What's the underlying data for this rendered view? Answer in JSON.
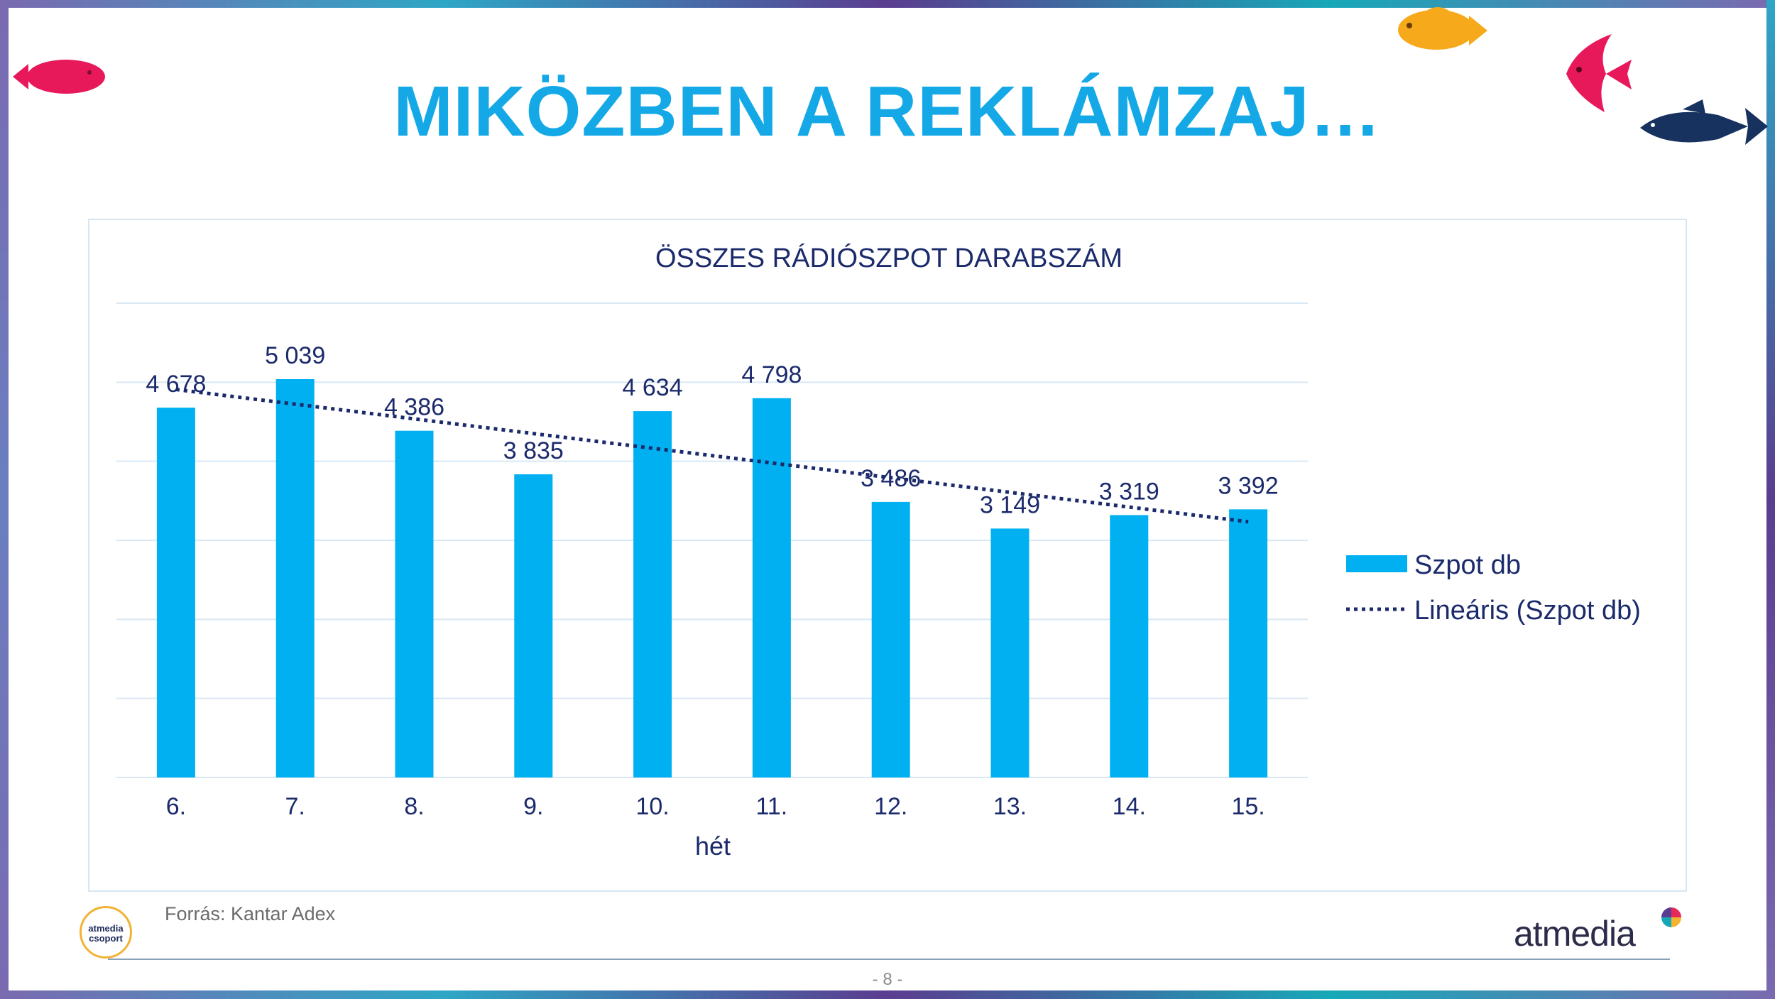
{
  "slide": {
    "title": "MIKÖZBEN A REKLÁMZAJ…",
    "source": "Forrás: Kantar Adex",
    "page_number": "- 8 -",
    "logo_left_text_1": "atmedia",
    "logo_left_text_2": "csoport",
    "logo_right_text": "atmedia"
  },
  "colors": {
    "title": "#14a9e6",
    "bar": "#00b0f0",
    "trend": "#1b2a6b",
    "label": "#1b2a6b",
    "gridline": "#d9e8f5"
  },
  "chart_data": {
    "type": "bar",
    "title": "ÖSSZES RÁDIÓSZPOT DARABSZÁM",
    "xlabel": "hét",
    "ylabel": "",
    "categories": [
      "6.",
      "7.",
      "8.",
      "9.",
      "10.",
      "11.",
      "12.",
      "13.",
      "14.",
      "15."
    ],
    "series": [
      {
        "name": "Szpot db",
        "values": [
          4678,
          5039,
          4386,
          3835,
          4634,
          4798,
          3486,
          3149,
          3319,
          3392
        ],
        "labels": [
          "4 678",
          "5 039",
          "4 386",
          "3 835",
          "4 634",
          "4 798",
          "3 486",
          "3 149",
          "3 319",
          "3 392"
        ]
      }
    ],
    "trendline": {
      "name": "Lineáris (Szpot db)",
      "type": "linear",
      "style": "dotted"
    },
    "ylim": [
      0,
      6000
    ],
    "y_grid_step": 1000,
    "y_axis_labels_shown": false,
    "grid": true,
    "legend_position": "right"
  },
  "icons": [
    "fish-icon-red",
    "fish-icon-orange",
    "angelfish-icon-red",
    "fish-icon-navy"
  ]
}
